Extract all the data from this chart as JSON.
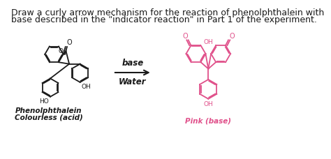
{
  "background_color": "#ffffff",
  "title_line1": "Draw a curly arrow mechanism for the reaction of phenolphthalein with",
  "title_line2": "base described in the \"indicator reaction\" in Part 1 of the experiment.",
  "title_fontsize": 9.0,
  "title_color": "#1a1a1a",
  "arrow_label_top": "base",
  "arrow_label_bottom": "Water",
  "arrow_label_fontsize": 8.5,
  "label_left_line1": "Phenolphthalein",
  "label_left_line2": "Colourless (acid)",
  "label_right": "Pink (base)",
  "label_fontsize": 7.5,
  "black_color": "#1a1a1a",
  "pink_color": "#e0508a",
  "lw": 1.3
}
